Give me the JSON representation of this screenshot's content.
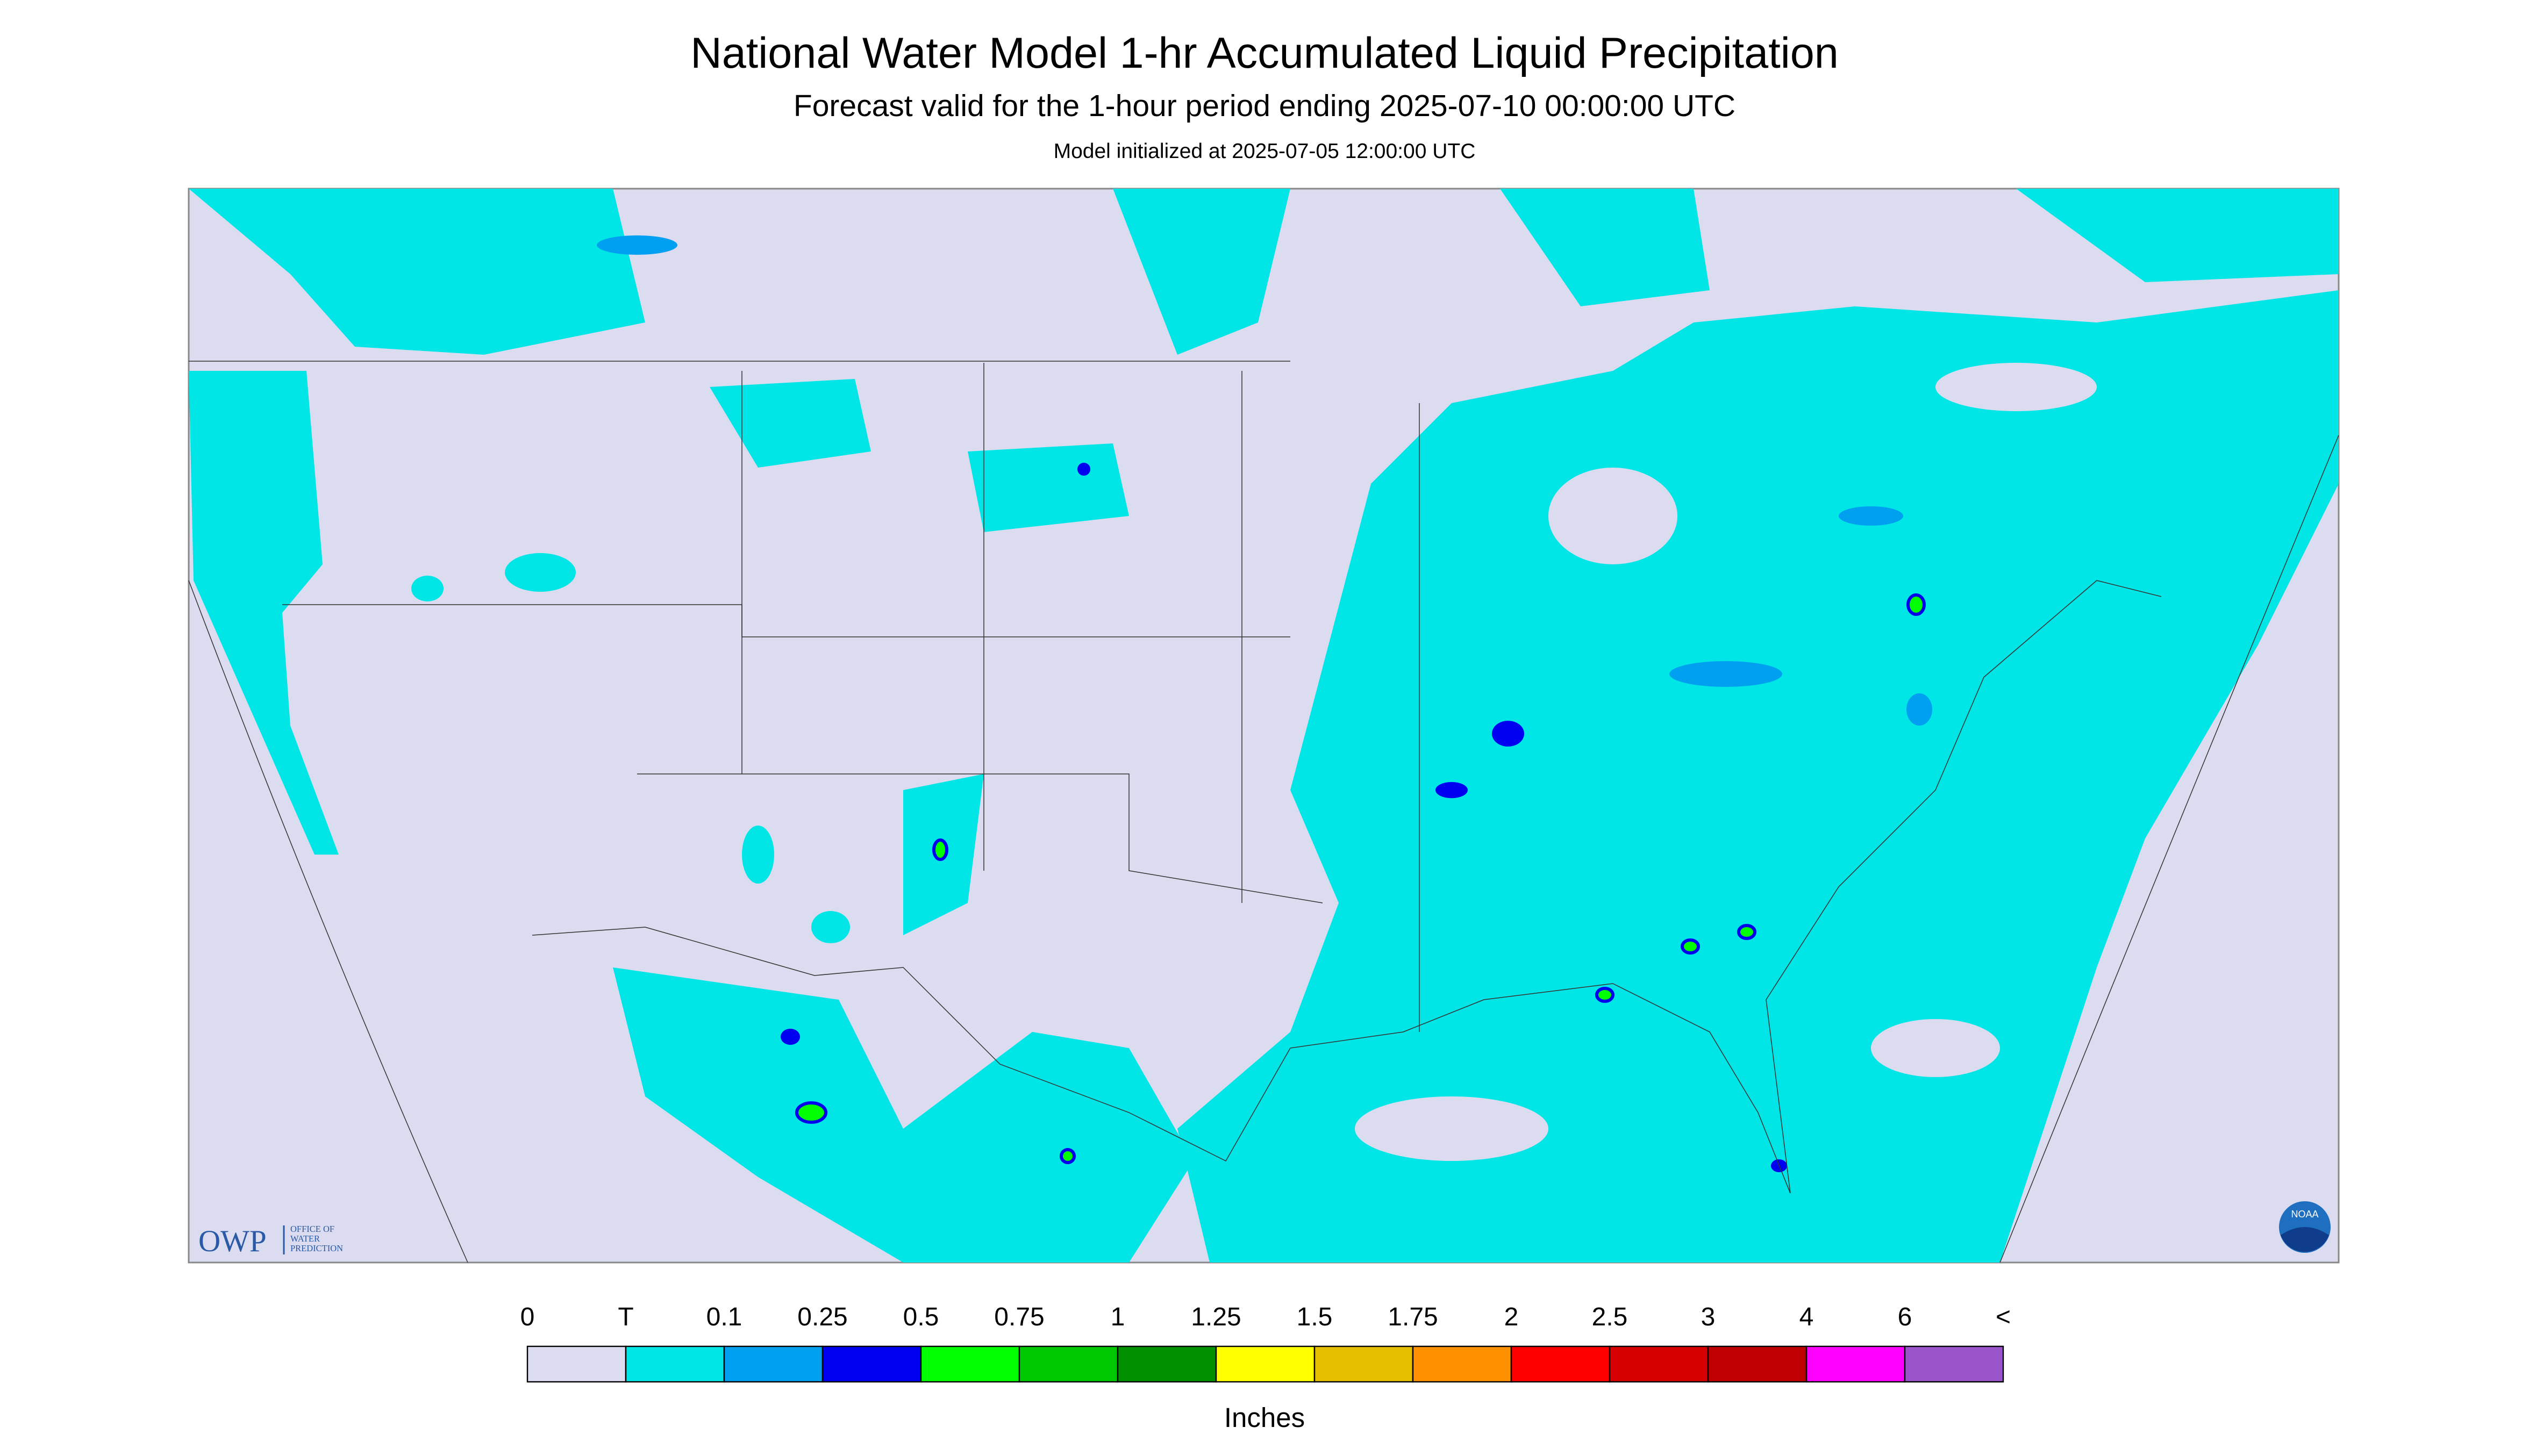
{
  "header": {
    "title": "National Water Model 1-hr Accumulated Liquid Precipitation",
    "subtitle": "Forecast valid for the 1-hour period ending 2025-07-10 00:00:00 UTC",
    "note": "Model initialized at 2025-07-05 12:00:00 UTC"
  },
  "logos": {
    "owp": "OWP",
    "owp_name": [
      "OFFICE OF",
      "WATER",
      "PREDICTION"
    ],
    "noaa": "NOAA"
  },
  "legend": {
    "labels": [
      0,
      "T",
      0.1,
      0.25,
      0.5,
      0.75,
      1,
      1.25,
      1.5,
      1.75,
      2,
      2.5,
      3,
      4,
      6,
      "<"
    ],
    "colors": [
      "#dcdcf0",
      "#00e6e6",
      "#00a0f0",
      "#0000f0",
      "#00ff00",
      "#00c800",
      "#009000",
      "#ffff00",
      "#e6be00",
      "#ff9000",
      "#ff0000",
      "#d60000",
      "#c00000",
      "#ff00ff",
      "#9955c9"
    ],
    "unit": "Inches"
  }
}
